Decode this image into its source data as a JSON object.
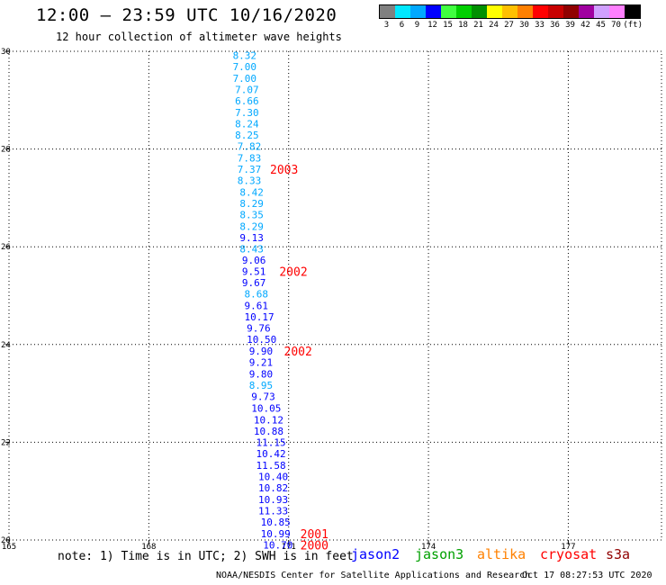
{
  "header": {
    "title": "12:00 – 23:59 UTC 10/16/2020",
    "subtitle": "12 hour collection of altimeter wave heights"
  },
  "legend": {
    "colors": [
      "#808080",
      "#00e8ff",
      "#00a8ff",
      "#0000ff",
      "#40ff40",
      "#00d000",
      "#009000",
      "#ffff00",
      "#ffc000",
      "#ff8000",
      "#ff0000",
      "#c80000",
      "#900000",
      "#a000a0",
      "#d0a0ff",
      "#ff80ff",
      "#000000"
    ],
    "labels": [
      "3",
      "6",
      "9",
      "12",
      "15",
      "18",
      "21",
      "24",
      "27",
      "30",
      "33",
      "36",
      "39",
      "42",
      "45",
      "70",
      "(ft)"
    ]
  },
  "chart_data": {
    "type": "scatter",
    "title": "12:00 – 23:59 UTC 10/16/2020",
    "subtitle": "12 hour collection of altimeter wave heights",
    "xlim": [
      165,
      179
    ],
    "ylim": [
      20,
      30
    ],
    "x_ticks": [
      "165",
      "168",
      "171",
      "174",
      "177"
    ],
    "y_ticks": [
      "20",
      "22",
      "24",
      "26",
      "28",
      "30"
    ],
    "grid": true,
    "points": [
      {
        "x": 169.8,
        "y": 29.92,
        "swh": "8.32",
        "color": "#00a8ff"
      },
      {
        "x": 169.8,
        "y": 29.69,
        "swh": "7.00",
        "color": "#00a8ff"
      },
      {
        "x": 169.8,
        "y": 29.45,
        "swh": "7.00",
        "color": "#00a8ff"
      },
      {
        "x": 169.85,
        "y": 29.22,
        "swh": "7.07",
        "color": "#00a8ff"
      },
      {
        "x": 169.85,
        "y": 28.99,
        "swh": "6.66",
        "color": "#00a8ff"
      },
      {
        "x": 169.85,
        "y": 28.75,
        "swh": "7.30",
        "color": "#00a8ff"
      },
      {
        "x": 169.85,
        "y": 28.52,
        "swh": "8.24",
        "color": "#00a8ff"
      },
      {
        "x": 169.85,
        "y": 28.29,
        "swh": "8.25",
        "color": "#00a8ff"
      },
      {
        "x": 169.9,
        "y": 28.06,
        "swh": "7.82",
        "color": "#00a8ff"
      },
      {
        "x": 169.9,
        "y": 27.82,
        "swh": "7.83",
        "color": "#00a8ff"
      },
      {
        "x": 169.9,
        "y": 27.59,
        "swh": "7.37",
        "color": "#00a8ff"
      },
      {
        "x": 169.9,
        "y": 27.36,
        "swh": "8.33",
        "color": "#00a8ff"
      },
      {
        "x": 169.95,
        "y": 27.12,
        "swh": "8.42",
        "color": "#00a8ff"
      },
      {
        "x": 169.95,
        "y": 26.89,
        "swh": "8.29",
        "color": "#00a8ff"
      },
      {
        "x": 169.95,
        "y": 26.66,
        "swh": "8.35",
        "color": "#00a8ff"
      },
      {
        "x": 169.95,
        "y": 26.42,
        "swh": "8.29",
        "color": "#00a8ff"
      },
      {
        "x": 169.95,
        "y": 26.19,
        "swh": "9.13",
        "color": "#0000ff"
      },
      {
        "x": 169.95,
        "y": 25.96,
        "swh": "8.43",
        "color": "#00a8ff"
      },
      {
        "x": 170.0,
        "y": 25.73,
        "swh": "9.06",
        "color": "#0000ff"
      },
      {
        "x": 170.0,
        "y": 25.5,
        "swh": "9.51",
        "color": "#0000ff"
      },
      {
        "x": 170.0,
        "y": 25.27,
        "swh": "9.67",
        "color": "#0000ff"
      },
      {
        "x": 170.05,
        "y": 25.04,
        "swh": "8.68",
        "color": "#00a8ff"
      },
      {
        "x": 170.05,
        "y": 24.8,
        "swh": "9.61",
        "color": "#0000ff"
      },
      {
        "x": 170.05,
        "y": 24.57,
        "swh": "10.17",
        "color": "#0000ff"
      },
      {
        "x": 170.1,
        "y": 24.34,
        "swh": "9.76",
        "color": "#0000ff"
      },
      {
        "x": 170.1,
        "y": 24.11,
        "swh": "10.50",
        "color": "#0000ff"
      },
      {
        "x": 170.15,
        "y": 23.87,
        "swh": "9.90",
        "color": "#0000ff"
      },
      {
        "x": 170.15,
        "y": 23.64,
        "swh": "9.21",
        "color": "#0000ff"
      },
      {
        "x": 170.15,
        "y": 23.4,
        "swh": "9.80",
        "color": "#0000ff"
      },
      {
        "x": 170.15,
        "y": 23.17,
        "swh": "8.95",
        "color": "#00a8ff"
      },
      {
        "x": 170.2,
        "y": 22.94,
        "swh": "9.73",
        "color": "#0000ff"
      },
      {
        "x": 170.2,
        "y": 22.7,
        "swh": "10.05",
        "color": "#0000ff"
      },
      {
        "x": 170.25,
        "y": 22.46,
        "swh": "10.12",
        "color": "#0000ff"
      },
      {
        "x": 170.25,
        "y": 22.23,
        "swh": "10.88",
        "color": "#0000ff"
      },
      {
        "x": 170.3,
        "y": 22.0,
        "swh": "11.15",
        "color": "#0000ff"
      },
      {
        "x": 170.3,
        "y": 21.77,
        "swh": "10.42",
        "color": "#0000ff"
      },
      {
        "x": 170.3,
        "y": 21.53,
        "swh": "11.58",
        "color": "#0000ff"
      },
      {
        "x": 170.35,
        "y": 21.3,
        "swh": "10.40",
        "color": "#0000ff"
      },
      {
        "x": 170.35,
        "y": 21.07,
        "swh": "10.82",
        "color": "#0000ff"
      },
      {
        "x": 170.35,
        "y": 20.83,
        "swh": "10.93",
        "color": "#0000ff"
      },
      {
        "x": 170.35,
        "y": 20.6,
        "swh": "11.33",
        "color": "#0000ff"
      },
      {
        "x": 170.4,
        "y": 20.37,
        "swh": "10.85",
        "color": "#0000ff"
      },
      {
        "x": 170.4,
        "y": 20.13,
        "swh": "10.99",
        "color": "#0000ff"
      },
      {
        "x": 170.45,
        "y": 19.9,
        "swh": "10.70",
        "color": "#0000ff"
      }
    ],
    "annotations": [
      {
        "x": 170.6,
        "y": 27.59,
        "text": "2003",
        "color": "#ff0000"
      },
      {
        "x": 170.8,
        "y": 25.5,
        "text": "2002",
        "color": "#ff0000"
      },
      {
        "x": 170.9,
        "y": 23.87,
        "text": "2002",
        "color": "#ff0000"
      },
      {
        "x": 171.25,
        "y": 20.13,
        "text": "2001",
        "color": "#ff0000"
      },
      {
        "x": 171.25,
        "y": 19.9,
        "text": "2000",
        "color": "#ff0000"
      }
    ]
  },
  "footer": {
    "note": "note: 1) Time is in UTC; 2) SWH is in feet",
    "satellites": [
      {
        "name": "jason2",
        "color": "#0000ff"
      },
      {
        "name": "jason3",
        "color": "#00a000"
      },
      {
        "name": "altika",
        "color": "#ff8000"
      },
      {
        "name": "cryosat",
        "color": "#ff0000"
      },
      {
        "name": "s3a",
        "color": "#900000"
      }
    ],
    "credit": "NOAA/NESDIS Center for Satellite Applications and Research",
    "timestamp": "Oct 17 08:27:53 UTC 2020"
  }
}
